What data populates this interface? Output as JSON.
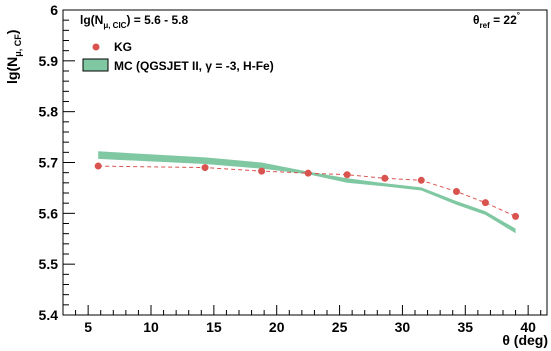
{
  "chart_data": {
    "type": "line",
    "title_left": {
      "prefix": "lg(N",
      "sub": "μ, CIC",
      "suffix": ") = 5.6 - 5.8"
    },
    "title_right": {
      "prefix": "θ",
      "sub": "ref",
      "suffix": " = 22",
      "sup": "°"
    },
    "ylabel": {
      "prefix": "lg(N",
      "sub": "μ, CF",
      "suffix": ")"
    },
    "xlabel": "θ (deg)",
    "xlim": [
      3,
      41.5
    ],
    "ylim": [
      5.4,
      6.0
    ],
    "xticks": [
      5,
      10,
      15,
      20,
      25,
      30,
      35,
      40
    ],
    "yticks": [
      5.4,
      5.5,
      5.6,
      5.7,
      5.8,
      5.9,
      6.0
    ],
    "ytick_labels": [
      "5.4",
      "5.5",
      "5.6",
      "5.7",
      "5.8",
      "5.9",
      "6"
    ],
    "series": [
      {
        "name": "KG",
        "color": "#d9534f",
        "x": [
          5.8,
          14.3,
          18.8,
          22.5,
          25.6,
          28.6,
          31.5,
          34.3,
          36.6,
          39.0
        ],
        "y": [
          5.693,
          5.69,
          5.683,
          5.679,
          5.676,
          5.669,
          5.665,
          5.643,
          5.621,
          5.594
        ]
      },
      {
        "name": "MC (QGSJET II, γ = -3, H-Fe)",
        "color": "#7fc8a2",
        "x": [
          5.8,
          14.3,
          18.8,
          22.5,
          25.6,
          28.6,
          31.5,
          34.3,
          36.6,
          39.0
        ],
        "y_low": [
          5.707,
          5.697,
          5.688,
          5.677,
          5.66,
          5.653,
          5.645,
          5.617,
          5.597,
          5.561
        ],
        "y_high": [
          5.722,
          5.71,
          5.7,
          5.682,
          5.669,
          5.659,
          5.651,
          5.624,
          5.604,
          5.57
        ]
      }
    ],
    "legend": "top-left",
    "grid": false
  }
}
